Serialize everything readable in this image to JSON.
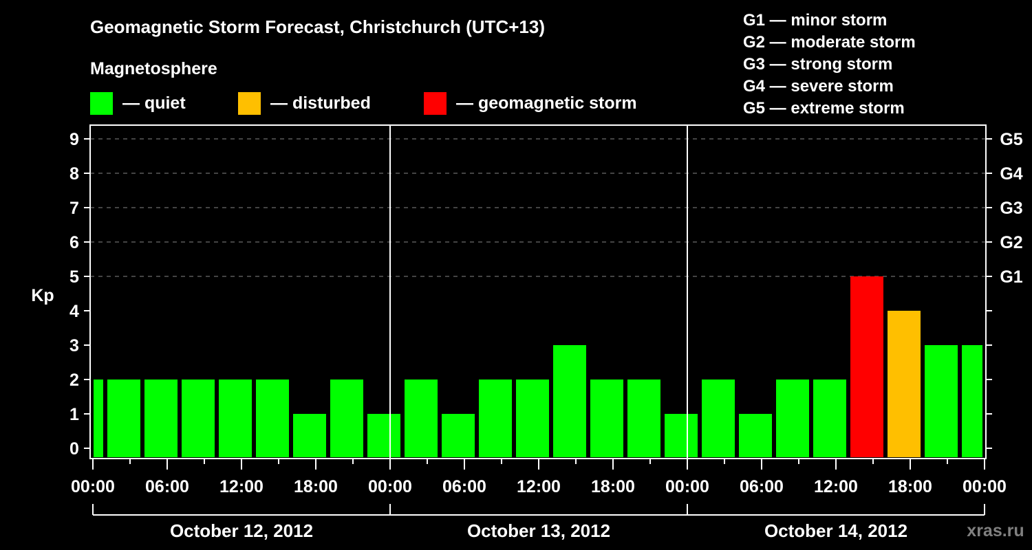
{
  "header": {
    "title": "Geomagnetic Storm Forecast, Christchurch (UTC+13)",
    "subtitle": "Magnetosphere"
  },
  "legend": {
    "items": [
      {
        "label": "— quiet",
        "color": "#00ff00"
      },
      {
        "label": "— disturbed",
        "color": "#ffbf00"
      },
      {
        "label": "— geomagnetic storm",
        "color": "#ff0000"
      }
    ]
  },
  "storm_scale": {
    "items": [
      "G1 — minor storm",
      "G2 — moderate storm",
      "G3 — strong storm",
      "G4 — severe storm",
      "G5 — extreme storm"
    ]
  },
  "watermark": "xras.ru",
  "chart_data": {
    "type": "bar",
    "title": "Geomagnetic Storm Forecast, Christchurch (UTC+13)",
    "xlabel": "",
    "ylabel": "Kp",
    "ylim": [
      0,
      9
    ],
    "yticks": [
      0,
      1,
      2,
      3,
      4,
      5,
      6,
      7,
      8,
      9
    ],
    "right_axis_labels": [
      {
        "kp": 5,
        "label": "G1"
      },
      {
        "kp": 6,
        "label": "G2"
      },
      {
        "kp": 7,
        "label": "G3"
      },
      {
        "kp": 8,
        "label": "G4"
      },
      {
        "kp": 9,
        "label": "G5"
      }
    ],
    "xtick_labels": [
      "00:00",
      "06:00",
      "12:00",
      "18:00",
      "00:00",
      "06:00",
      "12:00",
      "18:00",
      "00:00",
      "06:00",
      "12:00",
      "18:00",
      "00:00"
    ],
    "days": [
      "October 12, 2012",
      "October 13, 2012",
      "October 14, 2012"
    ],
    "grid": "dashed horizontal at Kp 5-9",
    "bar_interval_hours": 3,
    "bar_offset_hours": 1,
    "categories": [
      "Oct12 -02:00",
      "Oct12 01:00",
      "Oct12 04:00",
      "Oct12 07:00",
      "Oct12 10:00",
      "Oct12 13:00",
      "Oct12 16:00",
      "Oct12 19:00",
      "Oct12 22:00",
      "Oct13 01:00",
      "Oct13 04:00",
      "Oct13 07:00",
      "Oct13 10:00",
      "Oct13 13:00",
      "Oct13 16:00",
      "Oct13 19:00",
      "Oct13 22:00",
      "Oct14 01:00",
      "Oct14 04:00",
      "Oct14 07:00",
      "Oct14 10:00",
      "Oct14 13:00",
      "Oct14 16:00",
      "Oct14 19:00",
      "Oct14 22:00"
    ],
    "values": [
      2,
      2,
      2,
      2,
      2,
      2,
      1,
      2,
      1,
      2,
      1,
      2,
      2,
      3,
      2,
      2,
      1,
      2,
      1,
      2,
      2,
      5,
      4,
      3,
      3
    ],
    "status": [
      "quiet",
      "quiet",
      "quiet",
      "quiet",
      "quiet",
      "quiet",
      "quiet",
      "quiet",
      "quiet",
      "quiet",
      "quiet",
      "quiet",
      "quiet",
      "quiet",
      "quiet",
      "quiet",
      "quiet",
      "quiet",
      "quiet",
      "quiet",
      "quiet",
      "storm",
      "disturbed",
      "quiet",
      "quiet"
    ],
    "colors": {
      "quiet": "#00ff00",
      "disturbed": "#ffbf00",
      "storm": "#ff0000"
    }
  }
}
